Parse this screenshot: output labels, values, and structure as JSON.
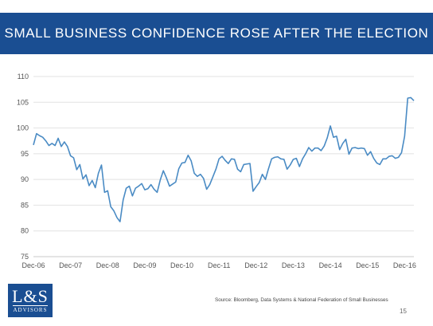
{
  "slide": {
    "title": "SMALL BUSINESS CONFIDENCE ROSE AFTER THE ELECTION",
    "source": "Source:  Bloomberg, Data Systems & National Federation of Small Businesses",
    "page_number": "15",
    "logo_main": "L&S",
    "logo_sub": "ADVISORS",
    "colors": {
      "title_bar": "#1a4e92",
      "line": "#4a8bc4",
      "grid": "#e2e2e2"
    }
  },
  "chart_data": {
    "type": "line",
    "title": "",
    "xlabel": "",
    "ylabel": "",
    "ylim": [
      75,
      110
    ],
    "yticks": [
      "75",
      "80",
      "85",
      "90",
      "95",
      "100",
      "105",
      "110"
    ],
    "xticks": [
      "Dec-06",
      "Dec-07",
      "Dec-08",
      "Dec-09",
      "Dec-10",
      "Dec-11",
      "Dec-12",
      "Dec-13",
      "Dec-14",
      "Dec-15",
      "Dec-16"
    ],
    "grid": true,
    "legend": "none",
    "start_month": "Dec-06",
    "series": [
      {
        "name": "",
        "values": [
          96.7,
          98.9,
          98.5,
          98.2,
          97.5,
          96.6,
          97.0,
          96.6,
          98.0,
          96.4,
          97.3,
          96.4,
          94.6,
          94.2,
          91.9,
          92.9,
          90.1,
          90.9,
          88.8,
          89.8,
          88.4,
          91.2,
          92.8,
          87.5,
          87.8,
          84.7,
          83.9,
          82.6,
          81.8,
          86.0,
          88.3,
          88.7,
          86.8,
          88.3,
          88.7,
          89.2,
          88.0,
          88.2,
          89.0,
          88.1,
          87.5,
          89.9,
          91.7,
          90.3,
          88.7,
          89.1,
          89.5,
          92.1,
          93.2,
          93.3,
          94.7,
          93.6,
          91.2,
          90.6,
          91.0,
          90.2,
          88.1,
          89.0,
          90.5,
          92.0,
          94.0,
          94.5,
          93.7,
          93.1,
          94.0,
          93.9,
          92.0,
          91.5,
          92.9,
          93.0,
          93.1,
          87.7,
          88.6,
          89.4,
          91.0,
          90.0,
          92.1,
          94.0,
          94.3,
          94.4,
          94.0,
          93.9,
          92.0,
          92.8,
          93.9,
          94.1,
          92.5,
          94.0,
          95.0,
          96.2,
          95.5,
          96.1,
          96.1,
          95.6,
          96.5,
          98.1,
          100.4,
          98.2,
          98.4,
          95.8,
          97.0,
          97.8,
          94.9,
          96.1,
          96.2,
          96.0,
          96.1,
          96.0,
          94.7,
          95.4,
          94.1,
          93.2,
          92.9,
          94.0,
          94.0,
          94.5,
          94.6,
          94.1,
          94.3,
          95.2,
          98.4,
          105.8,
          105.9,
          105.3
        ]
      }
    ]
  }
}
